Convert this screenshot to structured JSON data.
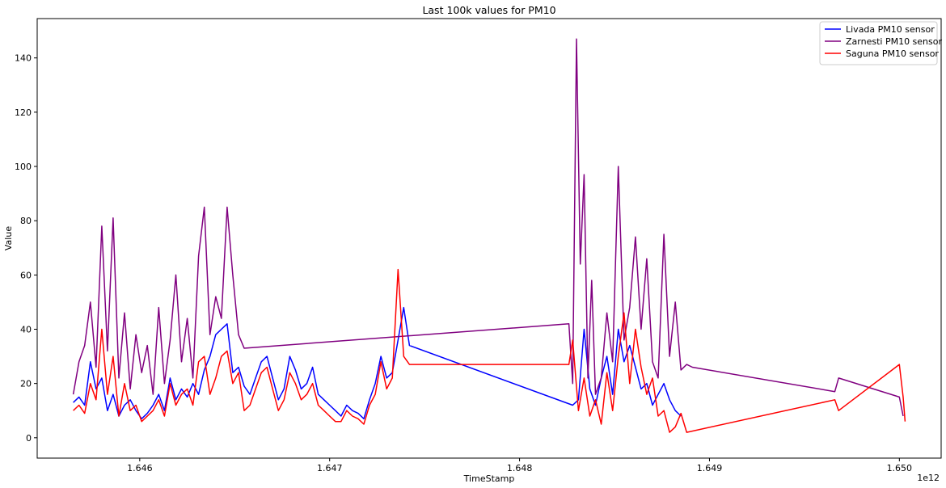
{
  "chart_data": {
    "type": "line",
    "title": "Last 100k values for PM10",
    "xlabel": "TimeStamp",
    "ylabel": "Value",
    "x_offset_label": "1e12",
    "xlim": [
      1.64546,
      1.65022
    ],
    "ylim": [
      -7.5,
      154.5
    ],
    "x_ticks": [
      1.646,
      1.647,
      1.648,
      1.649,
      1.65
    ],
    "x_tick_labels": [
      "1.646",
      "1.647",
      "1.648",
      "1.649",
      "1.650"
    ],
    "y_ticks": [
      0,
      20,
      40,
      60,
      80,
      100,
      120,
      140
    ],
    "y_tick_labels": [
      "0",
      "20",
      "40",
      "60",
      "80",
      "100",
      "120",
      "140"
    ],
    "grid": false,
    "legend_position": "top-right",
    "series": [
      {
        "name": "Livada PM10 sensor",
        "color": "#0000ff",
        "x": [
          1.64565,
          1.64568,
          1.64571,
          1.64574,
          1.64577,
          1.6458,
          1.64583,
          1.64586,
          1.64589,
          1.64592,
          1.64595,
          1.64598,
          1.64601,
          1.64604,
          1.64607,
          1.6461,
          1.64613,
          1.64616,
          1.64619,
          1.64622,
          1.64625,
          1.64628,
          1.64631,
          1.64634,
          1.64637,
          1.6464,
          1.64643,
          1.64646,
          1.64649,
          1.64652,
          1.64655,
          1.64658,
          1.64661,
          1.64664,
          1.64667,
          1.6467,
          1.64673,
          1.64676,
          1.64679,
          1.64682,
          1.64685,
          1.64688,
          1.64691,
          1.64694,
          1.64697,
          1.647,
          1.64703,
          1.64706,
          1.64709,
          1.64712,
          1.64715,
          1.64718,
          1.64721,
          1.64724,
          1.64727,
          1.6473,
          1.64733,
          1.64736,
          1.64739,
          1.64742,
          1.64828,
          1.64831,
          1.64834,
          1.64837,
          1.6484,
          1.64843,
          1.64846,
          1.64849,
          1.64852,
          1.64855,
          1.64858,
          1.64861,
          1.64864,
          1.64867,
          1.6487,
          1.64873,
          1.64876,
          1.64879,
          1.64882,
          1.64885
        ],
        "y": [
          13,
          15,
          12,
          28,
          18,
          22,
          10,
          16,
          8,
          12,
          14,
          10,
          7,
          9,
          12,
          16,
          10,
          22,
          14,
          18,
          15,
          20,
          16,
          25,
          30,
          38,
          40,
          42,
          24,
          26,
          19,
          16,
          22,
          28,
          30,
          22,
          14,
          18,
          30,
          25,
          18,
          20,
          26,
          16,
          14,
          12,
          10,
          8,
          12,
          10,
          9,
          7,
          14,
          20,
          30,
          22,
          24,
          36,
          48,
          34,
          12,
          14,
          40,
          18,
          12,
          22,
          30,
          16,
          40,
          28,
          34,
          26,
          18,
          20,
          12,
          16,
          20,
          14,
          10,
          8
        ]
      },
      {
        "name": "Zarnesti PM10 sensor",
        "color": "#800080",
        "x": [
          1.64565,
          1.64568,
          1.64571,
          1.64574,
          1.64577,
          1.6458,
          1.64583,
          1.64586,
          1.64589,
          1.64592,
          1.64595,
          1.64598,
          1.64601,
          1.64604,
          1.64607,
          1.6461,
          1.64613,
          1.64616,
          1.64619,
          1.64622,
          1.64625,
          1.64628,
          1.64631,
          1.64634,
          1.64637,
          1.6464,
          1.64643,
          1.64646,
          1.64649,
          1.64652,
          1.64655,
          1.64826,
          1.64828,
          1.6483,
          1.64832,
          1.64834,
          1.64836,
          1.64838,
          1.6484,
          1.64843,
          1.64846,
          1.64849,
          1.64852,
          1.64855,
          1.64858,
          1.64861,
          1.64864,
          1.64867,
          1.6487,
          1.64873,
          1.64876,
          1.64879,
          1.64882,
          1.64885,
          1.64888,
          1.64891,
          1.64966,
          1.64968,
          1.65,
          1.65002
        ],
        "y": [
          16,
          28,
          34,
          50,
          26,
          78,
          32,
          81,
          22,
          46,
          18,
          38,
          24,
          34,
          16,
          48,
          20,
          36,
          60,
          28,
          44,
          22,
          67,
          85,
          38,
          52,
          44,
          85,
          60,
          38,
          33,
          42,
          20,
          147,
          64,
          97,
          22,
          58,
          16,
          22,
          46,
          28,
          100,
          36,
          48,
          74,
          40,
          66,
          28,
          22,
          75,
          30,
          50,
          25,
          27,
          26,
          17,
          22,
          15,
          8
        ]
      },
      {
        "name": "Saguna PM10 sensor",
        "color": "#ff0000",
        "x": [
          1.64565,
          1.64568,
          1.64571,
          1.64574,
          1.64577,
          1.6458,
          1.64583,
          1.64586,
          1.64589,
          1.64592,
          1.64595,
          1.64598,
          1.64601,
          1.64604,
          1.64607,
          1.6461,
          1.64613,
          1.64616,
          1.64619,
          1.64622,
          1.64625,
          1.64628,
          1.64631,
          1.64634,
          1.64637,
          1.6464,
          1.64643,
          1.64646,
          1.64649,
          1.64652,
          1.64655,
          1.64658,
          1.64661,
          1.64664,
          1.64667,
          1.6467,
          1.64673,
          1.64676,
          1.64679,
          1.64682,
          1.64685,
          1.64688,
          1.64691,
          1.64694,
          1.64697,
          1.647,
          1.64703,
          1.64706,
          1.64709,
          1.64712,
          1.64715,
          1.64718,
          1.64721,
          1.64724,
          1.64727,
          1.6473,
          1.64733,
          1.64736,
          1.64739,
          1.64742,
          1.64826,
          1.64828,
          1.64831,
          1.64834,
          1.64837,
          1.6484,
          1.64843,
          1.64846,
          1.64849,
          1.64852,
          1.64855,
          1.64858,
          1.64861,
          1.64864,
          1.64867,
          1.6487,
          1.64873,
          1.64876,
          1.64879,
          1.64882,
          1.64885,
          1.64888,
          1.64966,
          1.64968,
          1.65,
          1.65002,
          1.65003
        ],
        "y": [
          10,
          12,
          9,
          20,
          14,
          40,
          16,
          30,
          8,
          20,
          10,
          12,
          6,
          8,
          10,
          14,
          8,
          20,
          12,
          16,
          18,
          12,
          28,
          30,
          16,
          22,
          30,
          32,
          20,
          24,
          10,
          12,
          18,
          24,
          26,
          18,
          10,
          14,
          24,
          20,
          14,
          16,
          20,
          12,
          10,
          8,
          6,
          6,
          10,
          8,
          7,
          5,
          12,
          16,
          28,
          18,
          22,
          62,
          30,
          27,
          27,
          36,
          10,
          22,
          8,
          14,
          5,
          24,
          10,
          30,
          46,
          20,
          40,
          26,
          16,
          22,
          8,
          10,
          2,
          4,
          9,
          2,
          14,
          10,
          27,
          15,
          6
        ]
      }
    ]
  }
}
